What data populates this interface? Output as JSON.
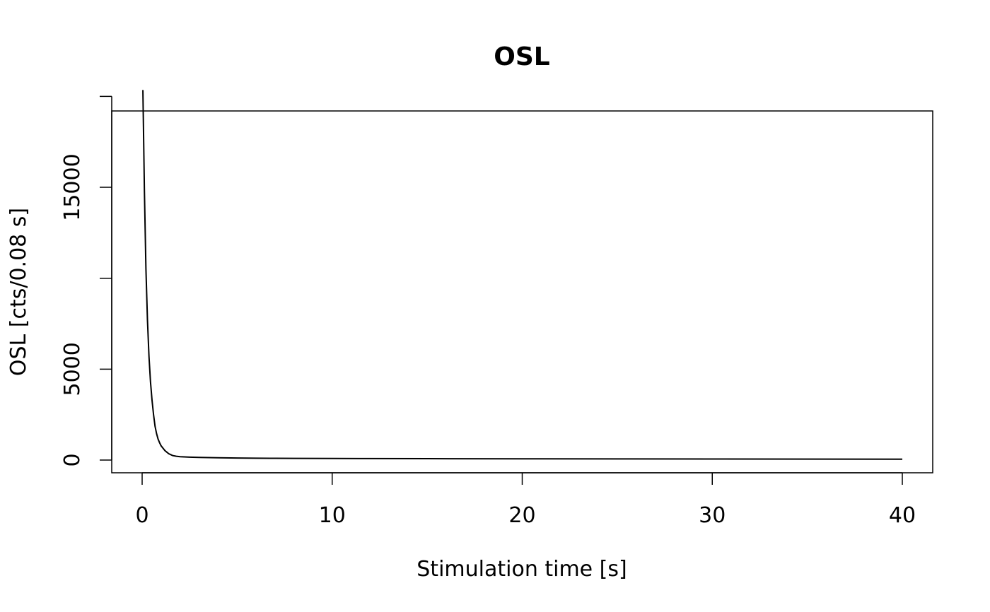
{
  "chart_data": {
    "type": "line",
    "title": "OSL",
    "xlabel": "Stimulation time [s]",
    "ylabel": "OSL [cts/0.08 s]",
    "xlim": [
      -1.6,
      41.6
    ],
    "ylim": [
      -700,
      19200
    ],
    "x_ticks": [
      0,
      10,
      20,
      30,
      40
    ],
    "y_ticks": [
      0,
      5000,
      10000,
      15000,
      20000
    ],
    "y_tick_labels": [
      "0",
      "5000",
      "",
      "15000",
      ""
    ],
    "grid": false,
    "series": [
      {
        "x": [
          0.04,
          0.12,
          0.2,
          0.28,
          0.36,
          0.44,
          0.52,
          0.6,
          0.68,
          0.76,
          0.84,
          0.92,
          1.0,
          1.2,
          1.4,
          1.6,
          1.8,
          2.0,
          2.5,
          3.0,
          3.5,
          4.0,
          5.0,
          6.0,
          7.0,
          8.0,
          10.0,
          12.0,
          15.0,
          20.0,
          25.0,
          30.0,
          35.0,
          40.0
        ],
        "y": [
          20350,
          14800,
          10500,
          7700,
          5700,
          4300,
          3300,
          2500,
          1850,
          1450,
          1150,
          950,
          780,
          520,
          350,
          250,
          210,
          185,
          160,
          145,
          135,
          125,
          110,
          100,
          95,
          90,
          85,
          80,
          75,
          70,
          65,
          60,
          55,
          50
        ]
      }
    ]
  }
}
